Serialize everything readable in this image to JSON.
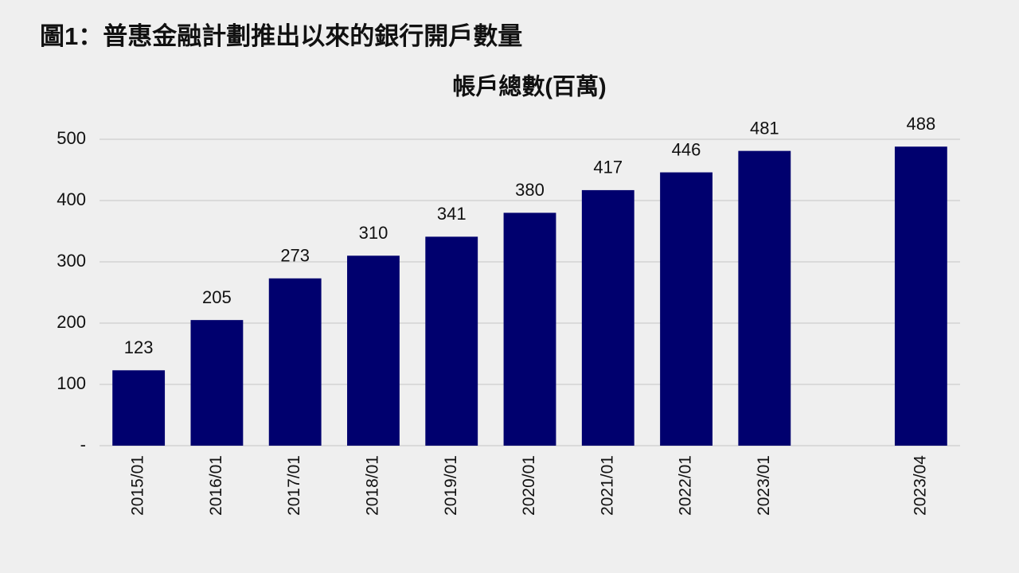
{
  "chart_data": {
    "type": "bar",
    "title": "圖1：普惠金融計劃推出以來的銀行開戶數量",
    "subtitle": "帳戶總數(百萬)",
    "categories": [
      "2015/01",
      "2016/01",
      "2017/01",
      "2018/01",
      "2019/01",
      "2020/01",
      "2021/01",
      "2022/01",
      "2023/01",
      null,
      "2023/04"
    ],
    "values": [
      123,
      205,
      273,
      310,
      341,
      380,
      417,
      446,
      481,
      null,
      488
    ],
    "color": "#00006e",
    "ylim": [
      0,
      500
    ],
    "yticks": [
      {
        "value": 0,
        "label": "-"
      },
      100,
      200,
      300,
      400,
      500
    ],
    "grid": true
  }
}
